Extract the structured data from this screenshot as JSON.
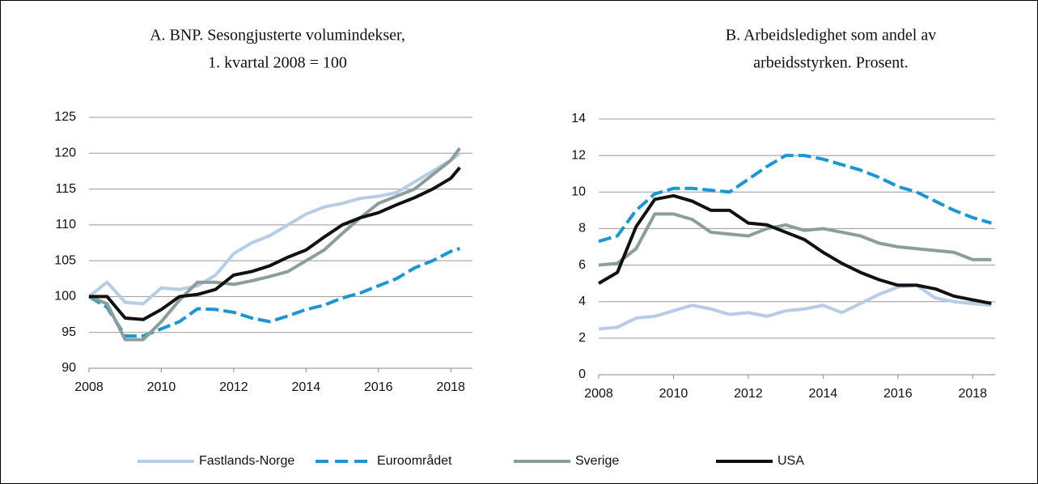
{
  "chart_data": [
    {
      "type": "line",
      "title": [
        "A. BNP. Sesongjusterte volumindekser,",
        "1. kvartal 2008  = 100"
      ],
      "x": [
        2008,
        2008.5,
        2009,
        2009.5,
        2010,
        2010.5,
        2011,
        2011.5,
        2012,
        2012.5,
        2013,
        2013.5,
        2014,
        2014.5,
        2015,
        2015.5,
        2016,
        2016.5,
        2017,
        2017.5,
        2018,
        2018.25
      ],
      "series": [
        {
          "name": "Fastlands-Norge",
          "color": "#b7cde6",
          "values": [
            100,
            102,
            99.2,
            99,
            101.2,
            101,
            101.5,
            103,
            106,
            107.5,
            108.5,
            110,
            111.5,
            112.5,
            113,
            113.7,
            114,
            114.5,
            116,
            117.5,
            119,
            120
          ]
        },
        {
          "name": "Euroområdet",
          "color": "#1a96d4",
          "dashed": true,
          "values": [
            100,
            98.5,
            94.5,
            94.5,
            95.5,
            96.5,
            98.3,
            98.2,
            97.8,
            97,
            96.5,
            97.3,
            98.2,
            98.8,
            99.8,
            100.5,
            101.5,
            102.5,
            104,
            105,
            106.3,
            106.7
          ]
        },
        {
          "name": "Sverige",
          "color": "#8c9e9a",
          "values": [
            100,
            99,
            94,
            94,
            96.5,
            99.5,
            102,
            102,
            101.7,
            102.2,
            102.8,
            103.5,
            105,
            106.5,
            108.8,
            111,
            113,
            114,
            115,
            117,
            119,
            120.7
          ]
        },
        {
          "name": "USA",
          "color": "#111111",
          "values": [
            100,
            100,
            97,
            96.8,
            98.2,
            100,
            100.3,
            101,
            103,
            103.5,
            104.3,
            105.5,
            106.5,
            108.3,
            110,
            111,
            111.7,
            112.8,
            113.8,
            115,
            116.5,
            118
          ]
        }
      ],
      "xlim": [
        2008,
        2018.6
      ],
      "xticks": [
        2008,
        2010,
        2012,
        2014,
        2016,
        2018
      ],
      "ylim": [
        90,
        125
      ],
      "yticks": [
        90,
        95,
        100,
        105,
        110,
        115,
        120,
        125
      ],
      "grid": true
    },
    {
      "type": "line",
      "title": [
        "B. Arbeidsledighet som andel av",
        "arbeidsstyrken. Prosent."
      ],
      "x": [
        2008,
        2008.5,
        2009,
        2009.5,
        2010,
        2010.5,
        2011,
        2011.5,
        2012,
        2012.5,
        2013,
        2013.5,
        2014,
        2014.5,
        2015,
        2015.5,
        2016,
        2016.5,
        2017,
        2017.5,
        2018,
        2018.5
      ],
      "series": [
        {
          "color": "#b7cde6",
          "values": [
            2.5,
            2.6,
            3.1,
            3.2,
            3.5,
            3.8,
            3.6,
            3.3,
            3.4,
            3.2,
            3.5,
            3.6,
            3.8,
            3.4,
            3.9,
            4.4,
            4.8,
            4.9,
            4.2,
            4.0,
            3.9,
            3.8
          ]
        },
        {
          "color": "#1a96d4",
          "dashed": true,
          "values": [
            7.3,
            7.6,
            9.0,
            9.9,
            10.2,
            10.2,
            10.1,
            10.0,
            10.7,
            11.4,
            12.0,
            12.0,
            11.8,
            11.5,
            11.2,
            10.8,
            10.3,
            10.0,
            9.5,
            9.0,
            8.6,
            8.3
          ]
        },
        {
          "color": "#8c9e9a",
          "values": [
            6.0,
            6.1,
            6.9,
            8.8,
            8.8,
            8.5,
            7.8,
            7.7,
            7.6,
            8.0,
            8.2,
            7.9,
            8.0,
            7.8,
            7.6,
            7.2,
            7.0,
            6.9,
            6.8,
            6.7,
            6.3,
            6.3
          ]
        },
        {
          "color": "#111111",
          "values": [
            5.0,
            5.6,
            8.1,
            9.6,
            9.8,
            9.5,
            9.0,
            9.0,
            8.3,
            8.2,
            7.8,
            7.4,
            6.7,
            6.1,
            5.6,
            5.2,
            4.9,
            4.9,
            4.7,
            4.3,
            4.1,
            3.9
          ]
        }
      ],
      "xlim": [
        2008,
        2018.6
      ],
      "xticks": [
        2008,
        2010,
        2012,
        2014,
        2016,
        2018
      ],
      "ylim": [
        0,
        14
      ],
      "yticks": [
        0,
        2,
        4,
        6,
        8,
        10,
        12,
        14
      ],
      "grid": true
    }
  ]
}
